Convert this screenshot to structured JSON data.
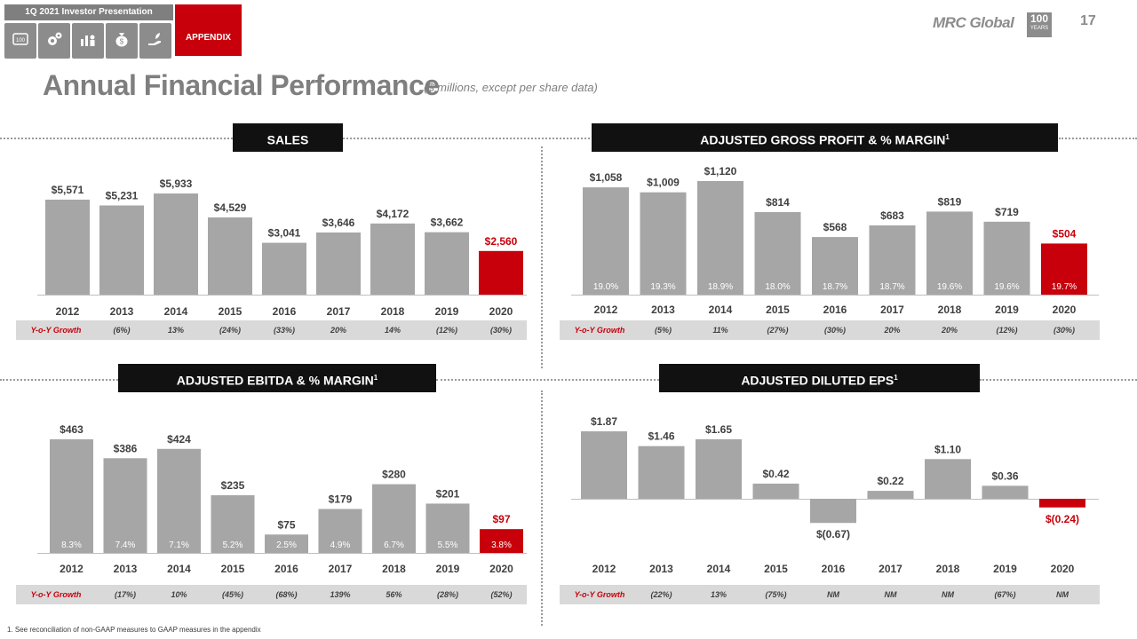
{
  "nav": {
    "presentation_title": "1Q 2021 Investor Presentation",
    "tabs": [
      "100-years-icon",
      "gears-icon",
      "people-chart-icon",
      "money-bag-icon",
      "hand-growth-icon"
    ],
    "appendix_label": "APPENDIX"
  },
  "brand": {
    "logo_text": "MRC Global",
    "badge_number": "100",
    "badge_text": "YEARS",
    "page_number": "17"
  },
  "page": {
    "title": "Annual Financial Performance",
    "subtitle": "($ millions, except per share data)"
  },
  "colors": {
    "bar": "#a6a6a6",
    "highlight": "#c8000b",
    "growth_bg": "#d9d9d9",
    "growth_label": "#c8000b"
  },
  "footnote": "1.    See reconciliation of non-GAAP measures to GAAP measures in the appendix",
  "chart_data": [
    {
      "type": "bar",
      "title": "SALES",
      "title_sup": "",
      "categories": [
        "2012",
        "2013",
        "2014",
        "2015",
        "2016",
        "2017",
        "2018",
        "2019",
        "2020"
      ],
      "values": [
        5571,
        5231,
        5933,
        4529,
        3041,
        3646,
        4172,
        3662,
        2560
      ],
      "value_labels": [
        "$5,571",
        "$5,231",
        "$5,933",
        "$4,529",
        "$3,041",
        "$3,646",
        "$4,172",
        "$3,662",
        "$2,560"
      ],
      "margins": [],
      "growth_label": "Y-o-Y Growth",
      "growth": [
        "(6%)",
        "13%",
        "(24%)",
        "(33%)",
        "20%",
        "14%",
        "(12%)",
        "(30%)"
      ],
      "ylim": [
        0,
        6000
      ]
    },
    {
      "type": "bar",
      "title": "ADJUSTED GROSS PROFIT & % MARGIN",
      "title_sup": "1",
      "categories": [
        "2012",
        "2013",
        "2014",
        "2015",
        "2016",
        "2017",
        "2018",
        "2019",
        "2020"
      ],
      "values": [
        1058,
        1009,
        1120,
        814,
        568,
        683,
        819,
        719,
        504
      ],
      "value_labels": [
        "$1,058",
        "$1,009",
        "$1,120",
        "$814",
        "$568",
        "$683",
        "$819",
        "$719",
        "$504"
      ],
      "margins": [
        "19.0%",
        "19.3%",
        "18.9%",
        "18.0%",
        "18.7%",
        "18.7%",
        "19.6%",
        "19.6%",
        "19.7%"
      ],
      "growth_label": "Y-o-Y Growth",
      "growth": [
        "(5%)",
        "11%",
        "(27%)",
        "(30%)",
        "20%",
        "20%",
        "(12%)",
        "(30%)"
      ],
      "ylim": [
        0,
        1200
      ]
    },
    {
      "type": "bar",
      "title": "ADJUSTED EBITDA & % MARGIN",
      "title_sup": "1",
      "categories": [
        "2012",
        "2013",
        "2014",
        "2015",
        "2016",
        "2017",
        "2018",
        "2019",
        "2020"
      ],
      "values": [
        463,
        386,
        424,
        235,
        75,
        179,
        280,
        201,
        97
      ],
      "value_labels": [
        "$463",
        "$386",
        "$424",
        "$235",
        "$75",
        "$179",
        "$280",
        "$201",
        "$97"
      ],
      "margins": [
        "8.3%",
        "7.4%",
        "7.1%",
        "5.2%",
        "2.5%",
        "4.9%",
        "6.7%",
        "5.5%",
        "3.8%"
      ],
      "growth_label": "Y-o-Y Growth",
      "growth": [
        "(17%)",
        "10%",
        "(45%)",
        "(68%)",
        "139%",
        "56%",
        "(28%)",
        "(52%)"
      ],
      "ylim": [
        0,
        500
      ]
    },
    {
      "type": "bar",
      "title": "ADJUSTED DILUTED EPS",
      "title_sup": "1",
      "categories": [
        "2012",
        "2013",
        "2014",
        "2015",
        "2016",
        "2017",
        "2018",
        "2019",
        "2020"
      ],
      "values": [
        1.87,
        1.46,
        1.65,
        0.42,
        -0.67,
        0.22,
        1.1,
        0.36,
        -0.24
      ],
      "value_labels": [
        "$1.87",
        "$1.46",
        "$1.65",
        "$0.42",
        "$(0.67)",
        "$0.22",
        "$1.10",
        "$0.36",
        "$(0.24)"
      ],
      "margins": [],
      "growth_label": "Y-o-Y Growth",
      "growth": [
        "(22%)",
        "13%",
        "(75%)",
        "NM",
        "NM",
        "NM",
        "(67%)",
        "NM"
      ],
      "ylim": [
        -0.8,
        2.0
      ]
    }
  ]
}
